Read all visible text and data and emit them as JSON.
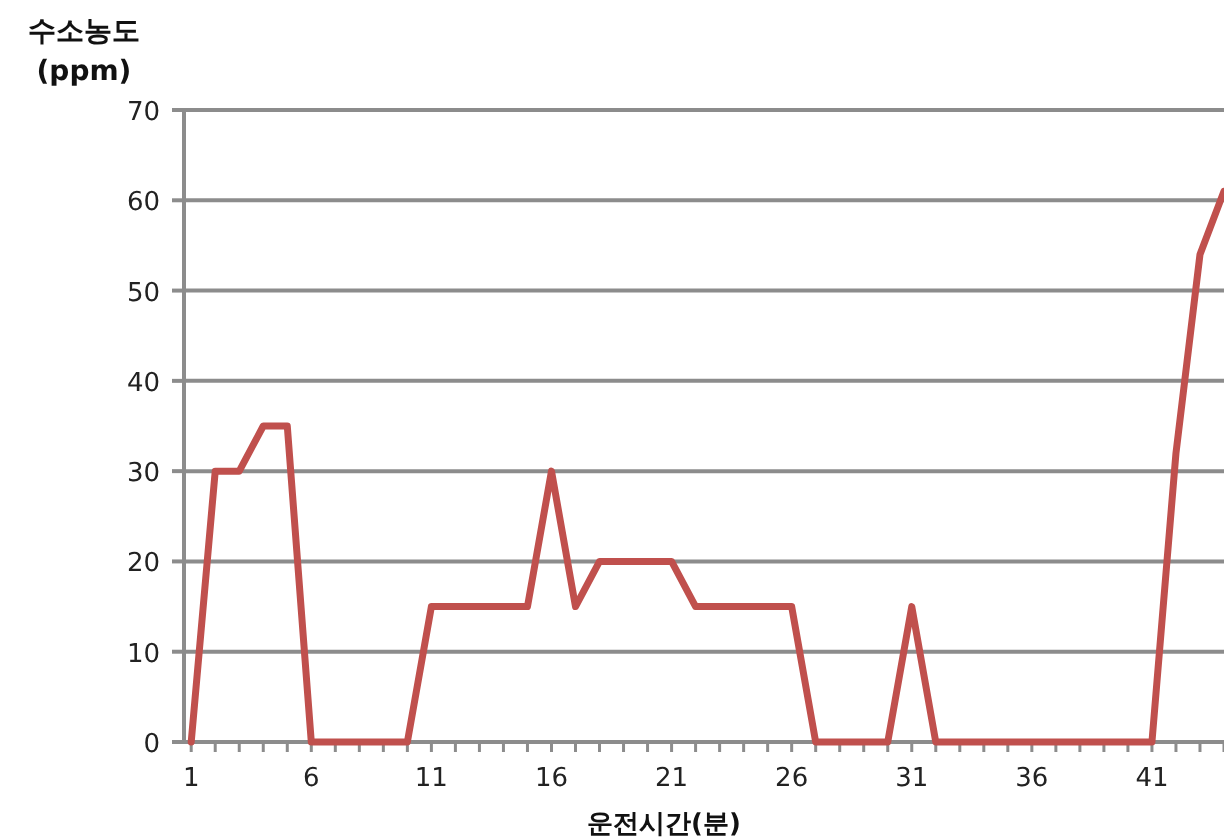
{
  "chart_data": {
    "type": "line",
    "xlabel": "운전시간(분)",
    "ylabel": "수소농도\n(ppm)",
    "x": [
      1,
      2,
      3,
      4,
      5,
      6,
      7,
      8,
      9,
      10,
      11,
      12,
      13,
      14,
      15,
      16,
      17,
      18,
      19,
      20,
      21,
      22,
      23,
      24,
      25,
      26,
      27,
      28,
      29,
      30,
      31,
      32,
      33,
      34,
      35,
      36,
      37,
      38,
      39,
      40,
      41,
      42,
      43,
      44
    ],
    "series": [
      {
        "color": "#c0504d",
        "values": [
          0,
          30,
          30,
          35,
          35,
          0,
          0,
          0,
          0,
          0,
          15,
          15,
          15,
          15,
          15,
          30,
          15,
          20,
          20,
          20,
          20,
          15,
          15,
          15,
          15,
          15,
          0,
          0,
          0,
          0,
          15,
          0,
          0,
          0,
          0,
          0,
          0,
          0,
          0,
          0,
          0,
          32,
          54,
          61
        ]
      }
    ],
    "xlim": [
      0.7,
      44
    ],
    "xticks": [
      1,
      6,
      11,
      16,
      21,
      26,
      31,
      36,
      41
    ],
    "ylim": [
      0,
      70
    ],
    "yticks": [
      0,
      10,
      20,
      30,
      40,
      50,
      60,
      70
    ],
    "grid": "y",
    "marker": "none",
    "line_style": "solid"
  }
}
